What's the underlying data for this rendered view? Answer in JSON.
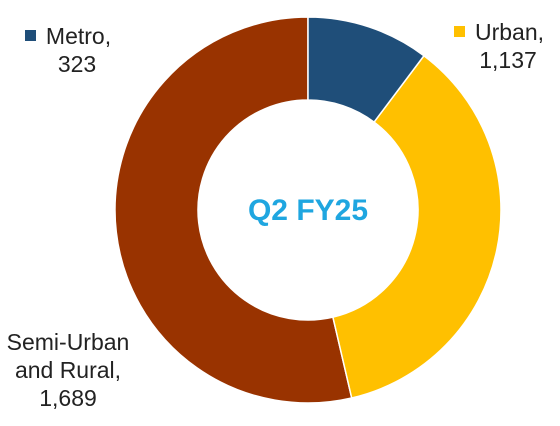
{
  "chart_data": {
    "type": "donut",
    "annotation": "Q2 FY25",
    "categories": [
      "Metro,",
      "Urban,",
      "Semi-Urban and Rural,"
    ],
    "values": [
      323,
      1137,
      1689
    ],
    "value_labels": [
      "323",
      "1,137",
      "1,689"
    ],
    "colors": [
      "#1f4e79",
      "#ffc000",
      "#993300"
    ]
  }
}
